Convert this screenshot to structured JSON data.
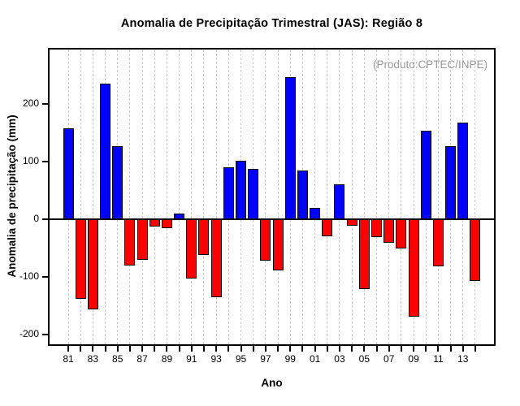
{
  "chart_data": {
    "type": "bar",
    "title": "Anomalia de Precipitação Trimestral (JAS): Região 8",
    "annotation": "(Produto:CPTEC/INPE)",
    "xlabel": "Ano",
    "ylabel": "Anomalia de precipitação (mm)",
    "categories": [
      "81",
      "82",
      "83",
      "84",
      "85",
      "86",
      "87",
      "88",
      "89",
      "90",
      "91",
      "92",
      "93",
      "94",
      "95",
      "96",
      "97",
      "98",
      "99",
      "00",
      "01",
      "02",
      "03",
      "04",
      "05",
      "06",
      "07",
      "08",
      "09",
      "10",
      "11",
      "12",
      "13",
      "14"
    ],
    "values": [
      158,
      -138,
      -157,
      235,
      127,
      -80,
      -70,
      -12,
      -15,
      10,
      -103,
      -62,
      -135,
      90,
      102,
      88,
      -72,
      -89,
      247,
      85,
      20,
      -29,
      61,
      -11,
      -121,
      -31,
      -41,
      -51,
      -169,
      153,
      -82,
      127,
      168,
      -107
    ],
    "x_tick_labels": [
      "81",
      "83",
      "85",
      "87",
      "89",
      "91",
      "93",
      "95",
      "97",
      "99",
      "01",
      "03",
      "05",
      "07",
      "09",
      "11",
      "13"
    ],
    "y_ticks": [
      -200,
      -100,
      0,
      100,
      200
    ],
    "ylim": [
      -220,
      297
    ],
    "units": "mm",
    "grid": "vertical dashed gridline at every year",
    "legend_position": "none",
    "colors": {
      "positive_bar": "#0000ff",
      "negative_bar": "#ff0000",
      "bar_border": "#000000",
      "gridline": "#c9c9c9",
      "axis": "#000000",
      "annotation_text": "#999999",
      "background": "#ffffff"
    }
  }
}
